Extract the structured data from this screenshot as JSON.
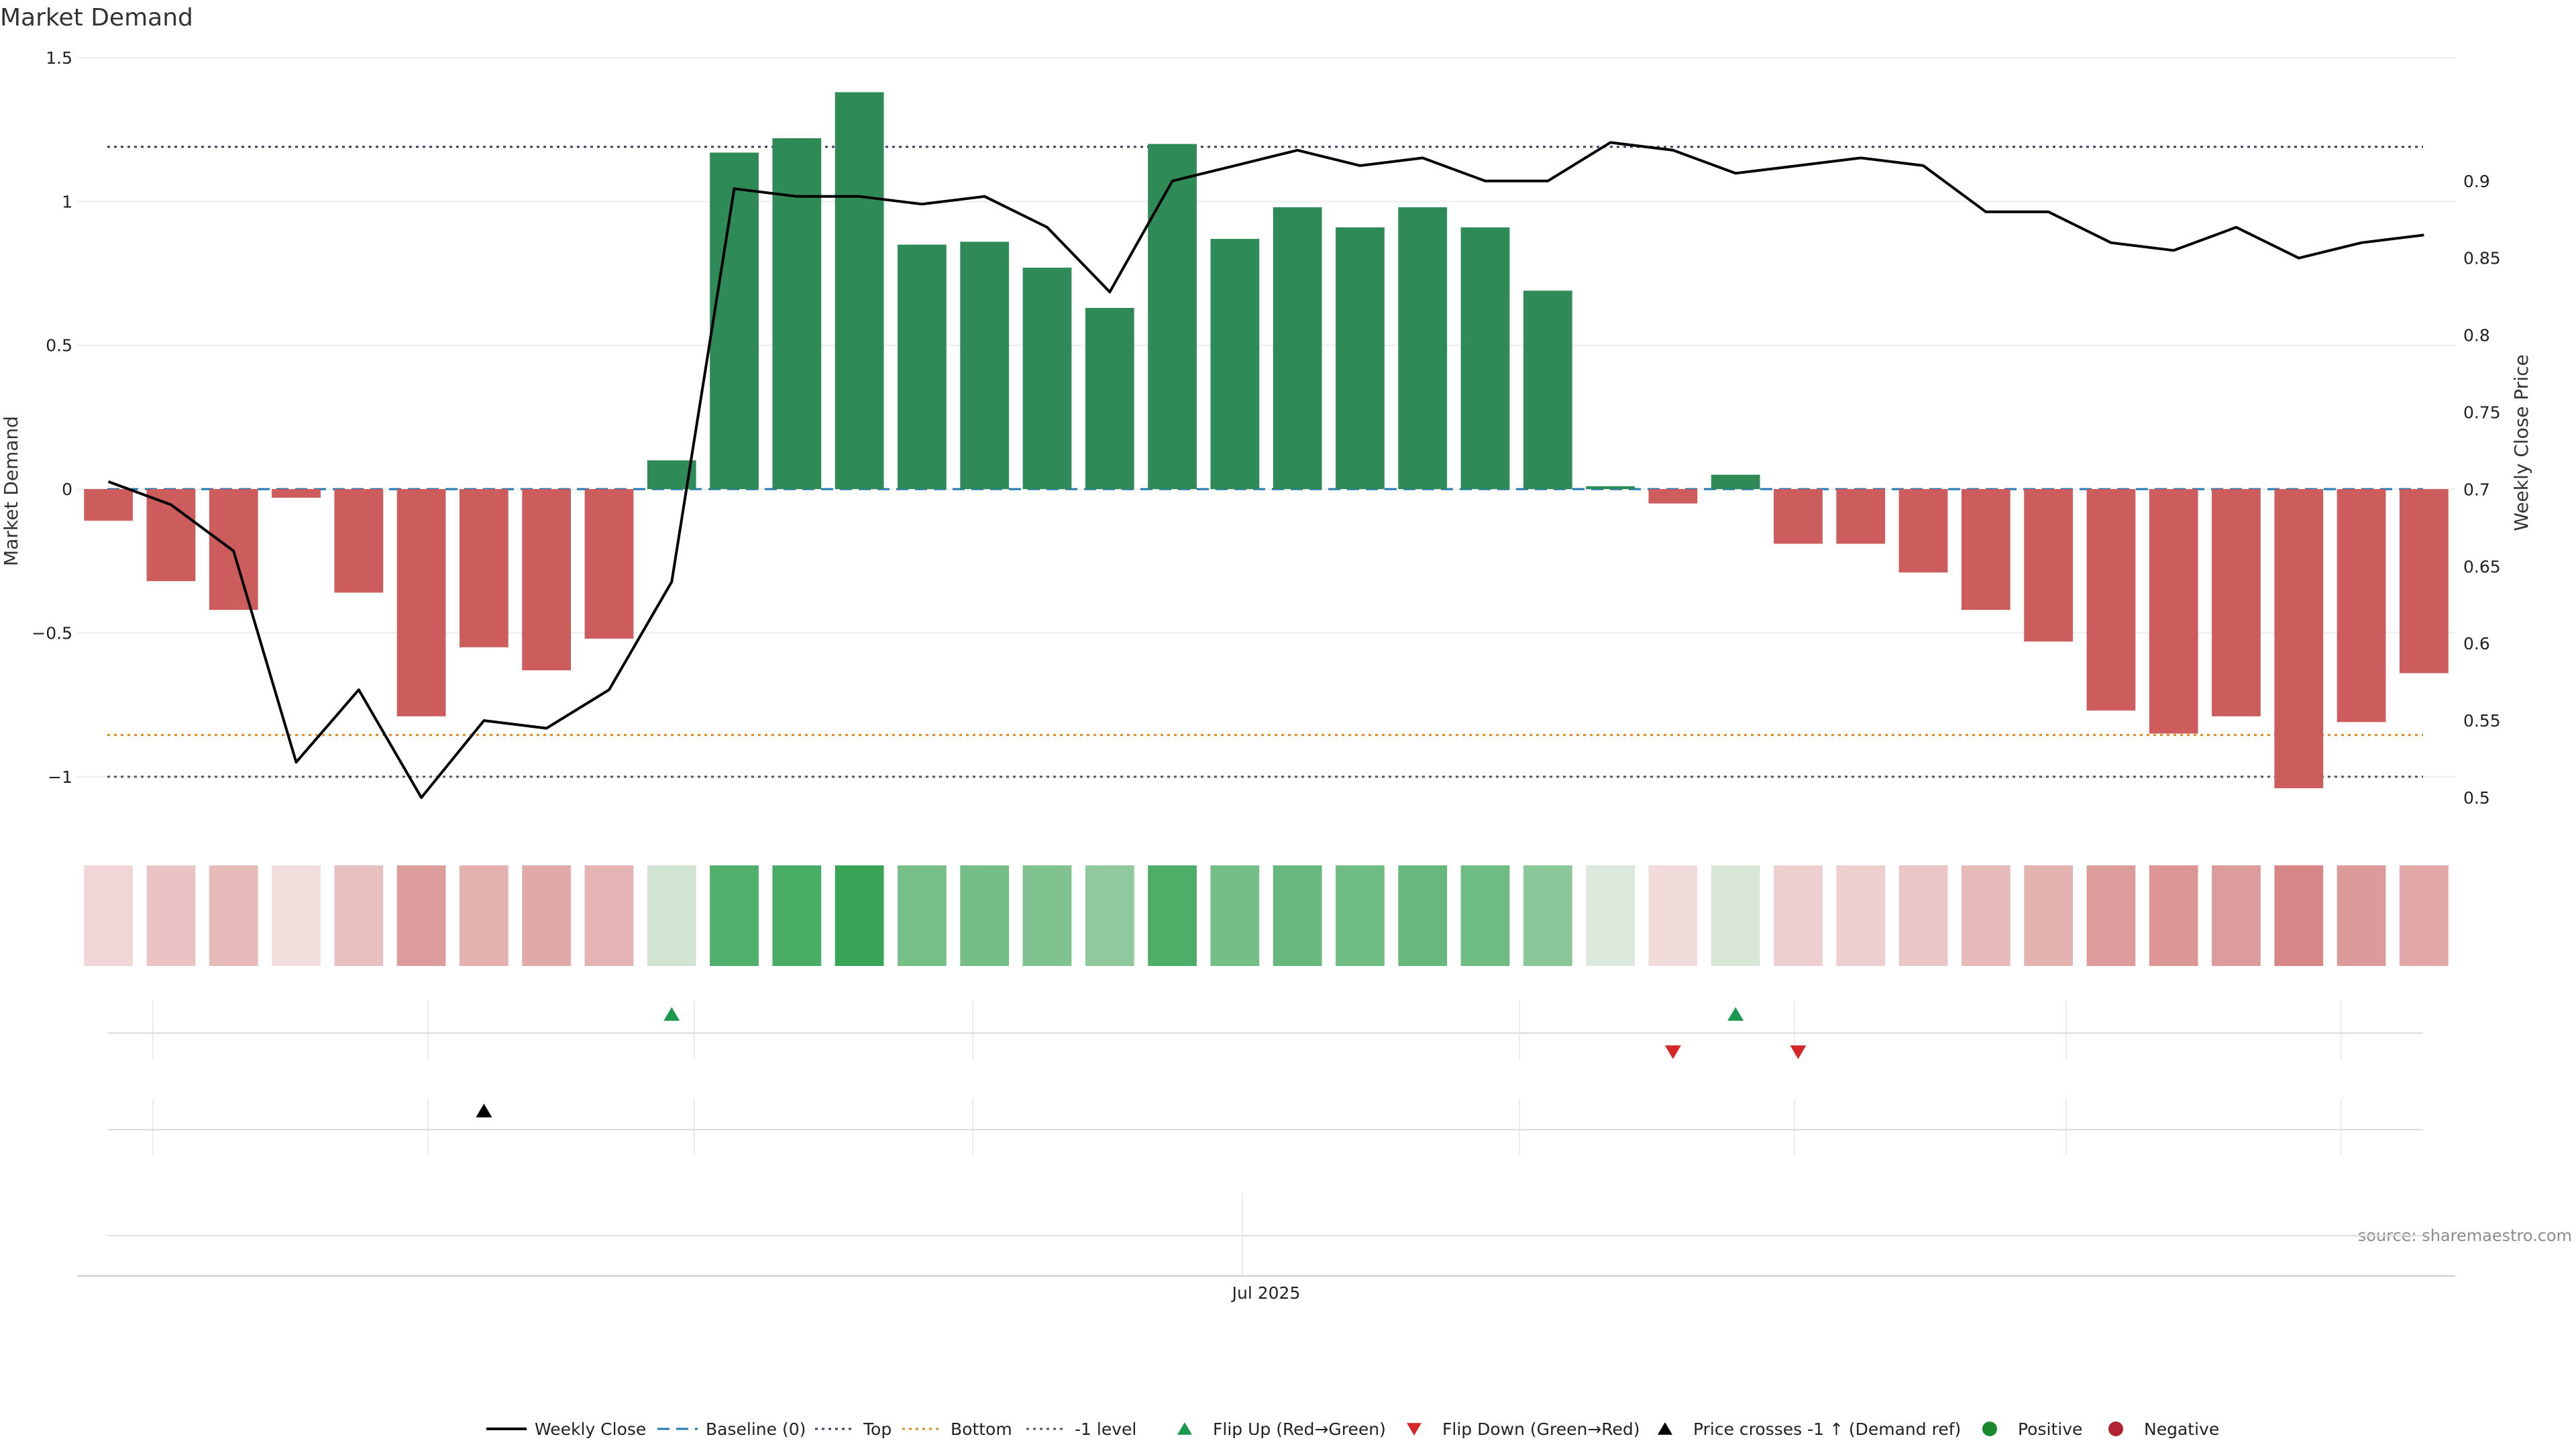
{
  "chart_data": {
    "type": "bar",
    "title": "Market Demand",
    "ylabel": "Market Demand",
    "y2label": "Weekly Close Price",
    "ylim": [
      -1.18,
      1.5
    ],
    "y2lim": [
      0.48,
      0.98
    ],
    "yticks": [
      -1,
      -0.5,
      0,
      0.5,
      1,
      1.5
    ],
    "y2ticks": [
      0.5,
      0.55,
      0.6,
      0.65,
      0.7,
      0.75,
      0.8,
      0.85,
      0.9
    ],
    "xtick_label": "Jul 2025",
    "xtick_index": 18.5,
    "source": "source: sharemaestro.com",
    "reference_lines": {
      "baseline": 0,
      "top": 1.19,
      "bottom": -0.855,
      "minus_one": -1
    },
    "colors": {
      "positive": "#2e8b57",
      "negative": "#cd5c5c",
      "line": "#000000",
      "baseline": "#1f77b4",
      "top": "#3b3b6b",
      "bottom": "#e08a1e",
      "flip_up": "#1a9850",
      "flip_down": "#d62728",
      "cross": "#000000",
      "legend_positive": "#1a8a2e",
      "legend_negative": "#b22232"
    },
    "demand": [
      -0.11,
      -0.32,
      -0.42,
      -0.03,
      -0.36,
      -0.79,
      -0.55,
      -0.63,
      -0.52,
      0.1,
      1.17,
      1.22,
      1.38,
      0.85,
      0.86,
      0.77,
      0.63,
      1.2,
      0.87,
      0.98,
      0.91,
      0.98,
      0.91,
      0.69,
      0.01,
      -0.05,
      0.05,
      -0.19,
      -0.19,
      -0.29,
      -0.42,
      -0.53,
      -0.77,
      -0.85,
      -0.79,
      -1.04,
      -0.81,
      -0.64
    ],
    "weekly_close": [
      0.705,
      0.69,
      0.66,
      0.523,
      0.57,
      0.5,
      0.55,
      0.545,
      0.57,
      0.64,
      0.895,
      0.89,
      0.89,
      0.885,
      0.89,
      0.87,
      0.828,
      0.9,
      0.91,
      0.92,
      0.91,
      0.915,
      0.9,
      0.9,
      0.925,
      0.92,
      0.905,
      0.91,
      0.915,
      0.91,
      0.88,
      0.88,
      0.86,
      0.855,
      0.87,
      0.85,
      0.86,
      0.865
    ],
    "flip_up_indices": [
      9,
      26
    ],
    "flip_down_indices": [
      25,
      27
    ],
    "price_cross_indices": [
      6
    ],
    "legend": [
      "Weekly Close",
      "Baseline (0)",
      "Top",
      "Bottom",
      "-1 level",
      "Flip Up (Red→Green)",
      "Flip Down (Green→Red)",
      "Price crosses -1 ↑ (Demand ref)",
      "Positive",
      "Negative"
    ]
  }
}
